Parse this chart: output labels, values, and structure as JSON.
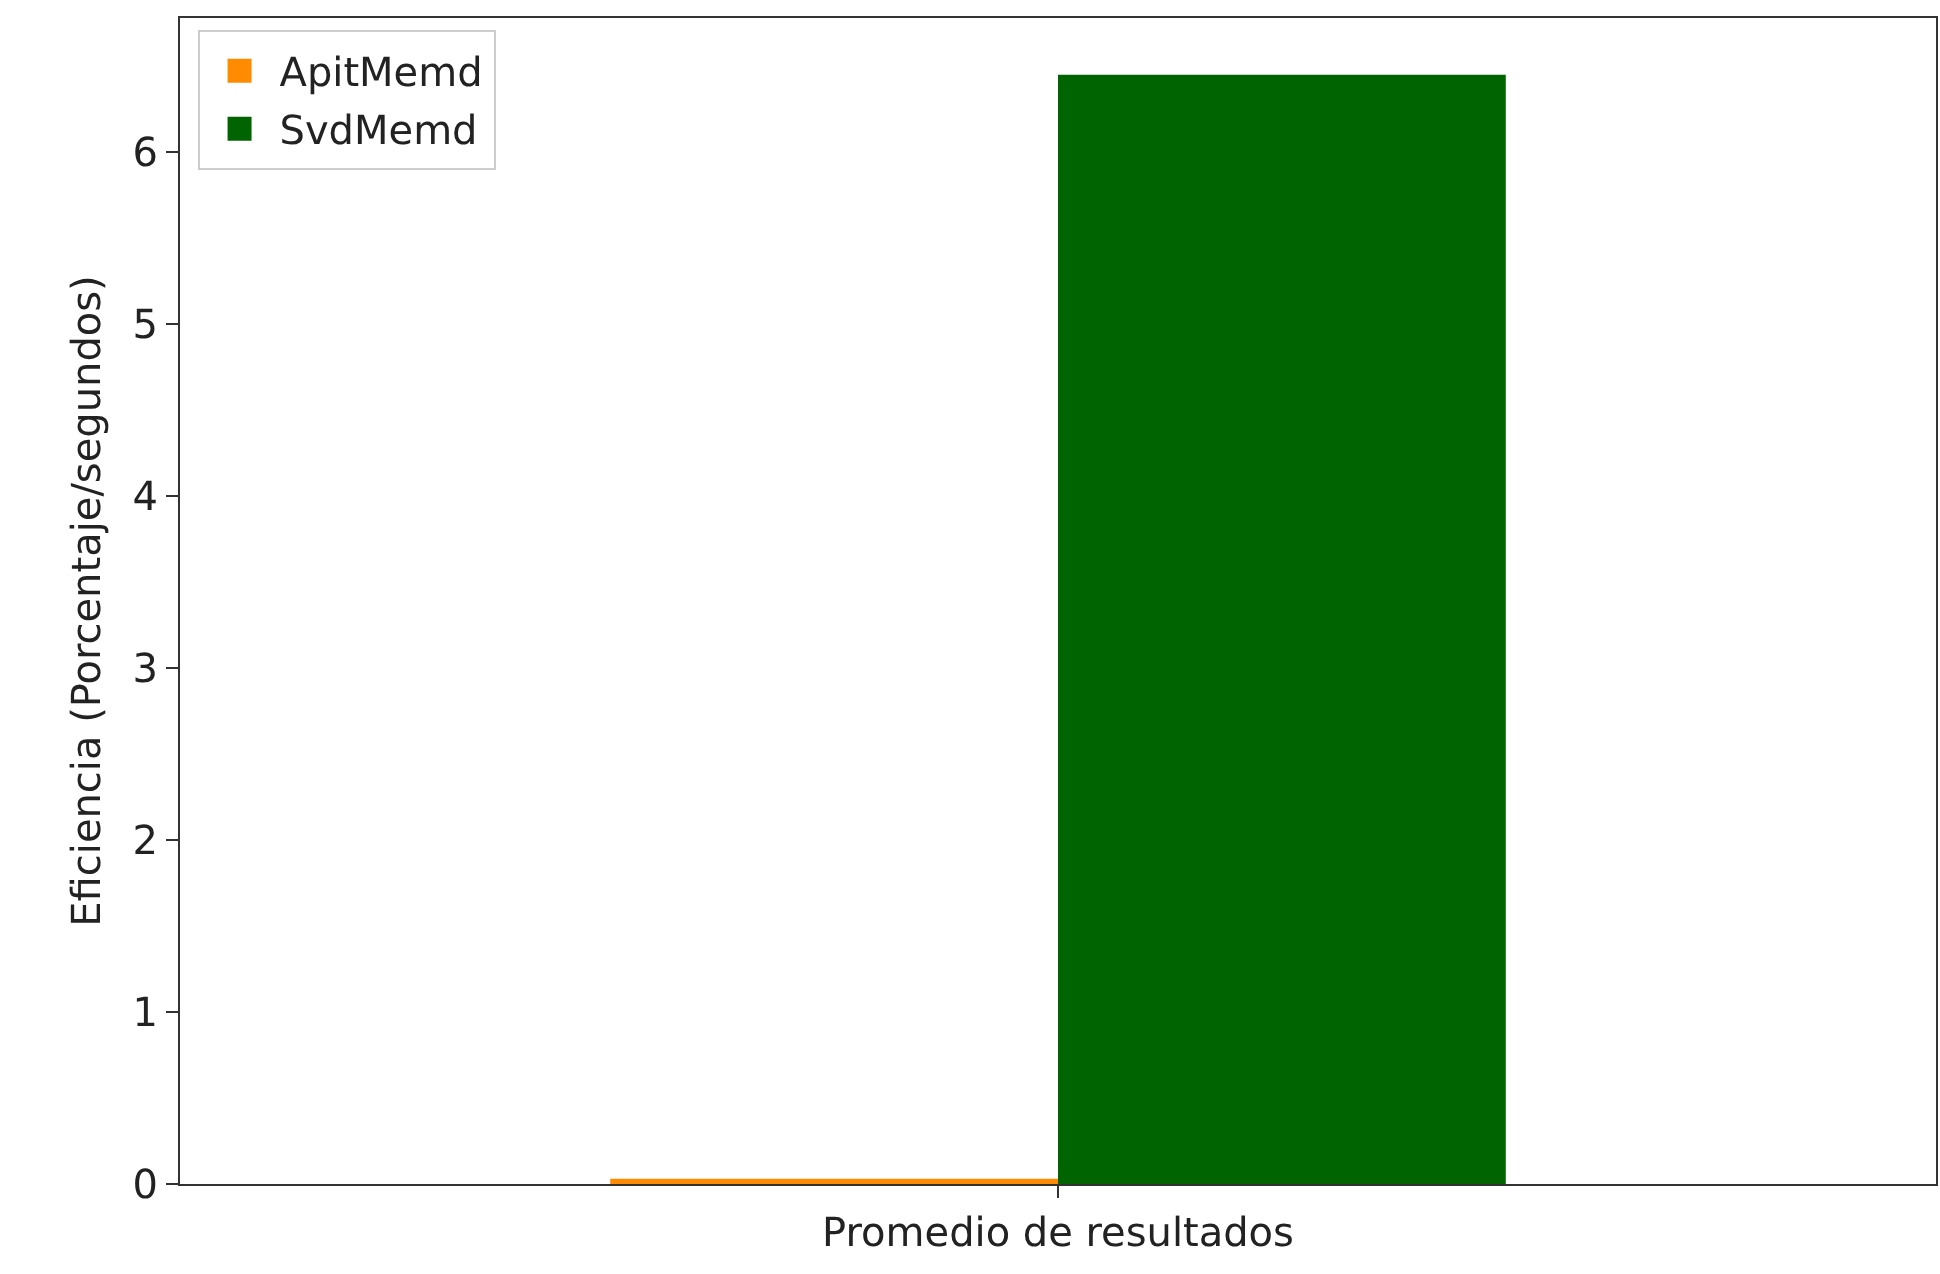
{
  "chart_data": {
    "type": "bar",
    "categories": [
      "Promedio de resultados"
    ],
    "series": [
      {
        "name": "ApitMemd",
        "color": "#ff8c00",
        "values": [
          0.03
        ]
      },
      {
        "name": "SvdMemd",
        "color": "#006400",
        "values": [
          6.45
        ]
      }
    ],
    "ylabel": "Eficiencia (Porcentaje/segundos)",
    "ylim": [
      0,
      6.78
    ],
    "yticks": [
      0,
      1,
      2,
      3,
      4,
      5,
      6
    ],
    "grid": false,
    "legend": "top left"
  }
}
